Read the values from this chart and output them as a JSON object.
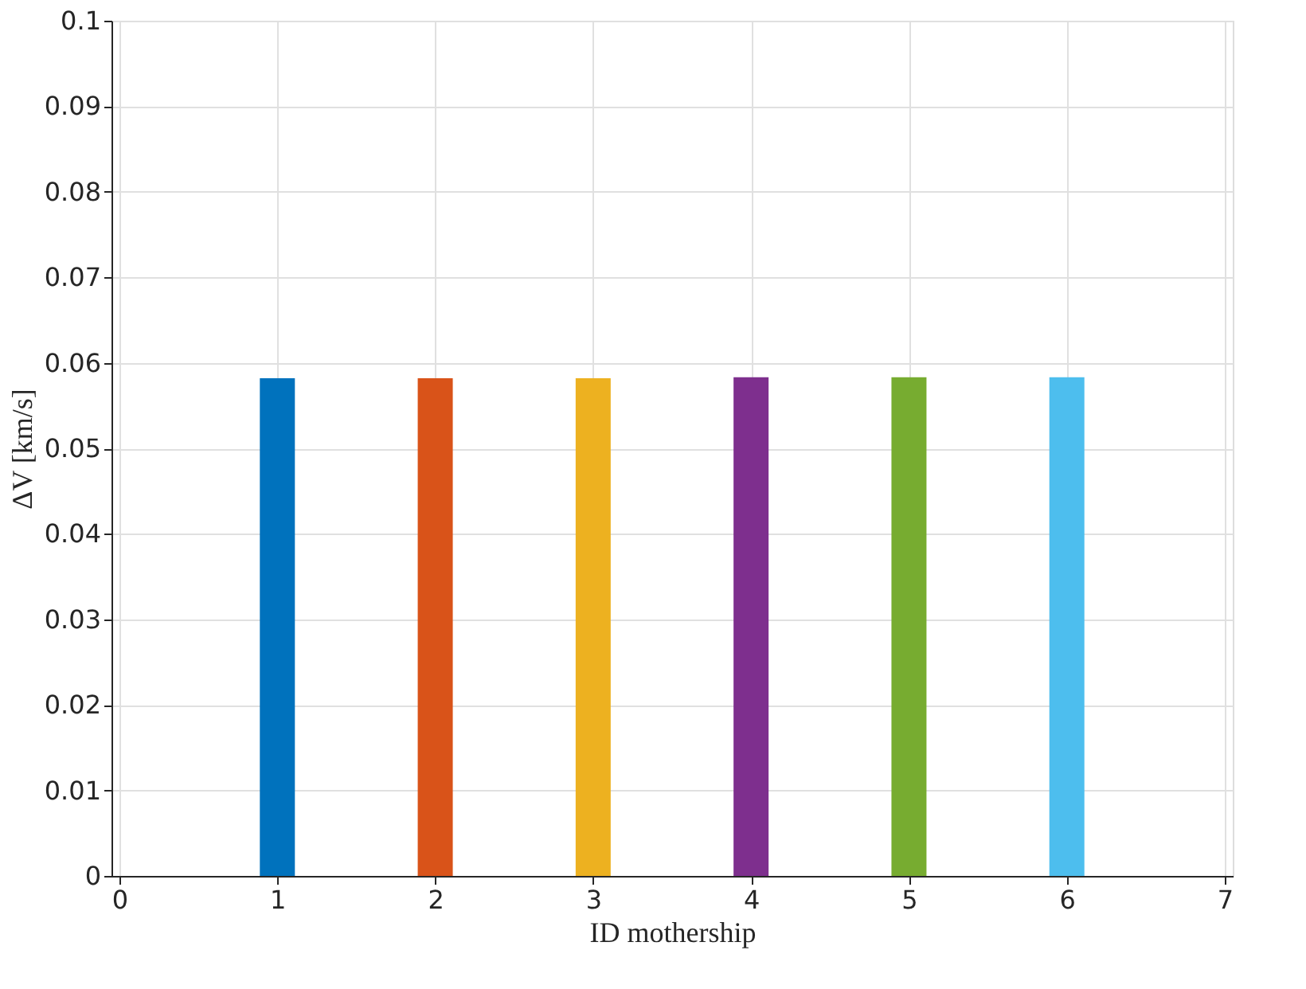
{
  "chart_data": {
    "type": "bar",
    "xlabel": "ID mothership",
    "ylabel": "ΔV [km/s]",
    "x": [
      1,
      2,
      3,
      4,
      5,
      6
    ],
    "values": [
      0.0582,
      0.0582,
      0.0582,
      0.0583,
      0.0583,
      0.0583
    ],
    "colors": [
      "#0072bd",
      "#d95319",
      "#edb120",
      "#7e2f8e",
      "#77ac30",
      "#4dbeee"
    ],
    "xlim": [
      0,
      7
    ],
    "xticks": [
      0,
      1,
      2,
      3,
      4,
      5,
      6,
      7
    ],
    "ylim": [
      0,
      0.1
    ],
    "yticks": [
      0,
      0.01,
      0.02,
      0.03,
      0.04,
      0.05,
      0.06,
      0.07,
      0.08,
      0.09,
      0.1
    ],
    "grid": true
  }
}
